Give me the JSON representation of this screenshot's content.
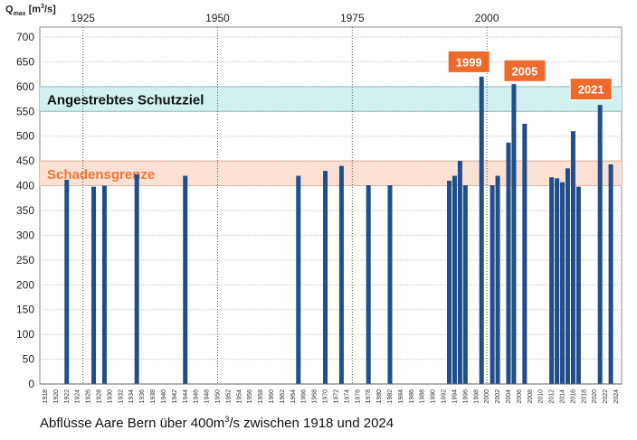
{
  "chart_data": {
    "type": "bar",
    "ylabel": {
      "main": "Q",
      "sub": "max",
      "unit_pre": " [m",
      "unit_sup": "3",
      "unit_post": "/s]"
    },
    "caption": {
      "pre": "Abflüsse Aare Bern über 400m",
      "sup": "3",
      "post": "/s zwischen 1918 und 2024"
    },
    "ylim": [
      0,
      720
    ],
    "yticks": [
      0,
      50,
      100,
      150,
      200,
      250,
      300,
      350,
      400,
      450,
      500,
      550,
      600,
      650,
      700
    ],
    "xlim": [
      1917,
      2025
    ],
    "xtick_labels": [
      "1918",
      "1920",
      "1922",
      "1924",
      "1926",
      "1928",
      "1930",
      "1932",
      "1934",
      "1936",
      "1938",
      "1940",
      "1942",
      "1944",
      "1946",
      "1948",
      "1950",
      "1952",
      "1954",
      "1956",
      "1958",
      "1960",
      "1962",
      "1964",
      "1966",
      "1968",
      "1970",
      "1972",
      "1974",
      "1976",
      "1978",
      "1980",
      "1982",
      "1984",
      "1986",
      "1988",
      "1990",
      "1992",
      "1994",
      "1996",
      "1998",
      "2000",
      "2002",
      "2004",
      "2006",
      "2008",
      "2010",
      "2012",
      "2014",
      "2016",
      "2018",
      "2020",
      "2022",
      "2024"
    ],
    "top_year_labels": [
      "1925",
      "1950",
      "1975",
      "2000"
    ],
    "bands": [
      {
        "label": "Angestrebtes Schutzziel",
        "from": 550,
        "to": 600,
        "fill": "#d2f0f0",
        "line": "#6fb7b7",
        "text_color": "#111111"
      },
      {
        "label": "Schadensgrenze",
        "from": 400,
        "to": 450,
        "fill": "#fbe1d4",
        "line": "#e8a583",
        "text_color": "#ee7733"
      }
    ],
    "bar_color": "#1f4e8c",
    "callout_color": "#ee6a2c",
    "callouts": [
      {
        "year": 1999,
        "label": "1999",
        "value_anchor": 620
      },
      {
        "year": 2005,
        "label": "2005",
        "value_anchor": 605
      },
      {
        "year": 2021,
        "label": "2021",
        "value_anchor": 563
      }
    ],
    "x": [
      1922,
      1927,
      1929,
      1935,
      1944,
      1965,
      1970,
      1973,
      1978,
      1982,
      1993,
      1994,
      1995,
      1996,
      1999,
      2001,
      2002,
      2004,
      2005,
      2007,
      2012,
      2013,
      2014,
      2015,
      2016,
      2017,
      2021,
      2023
    ],
    "values": [
      412,
      398,
      400,
      423,
      420,
      420,
      430,
      440,
      401,
      401,
      410,
      420,
      450,
      401,
      620,
      401,
      420,
      487,
      605,
      525,
      417,
      415,
      407,
      435,
      510,
      398,
      563,
      443
    ]
  }
}
